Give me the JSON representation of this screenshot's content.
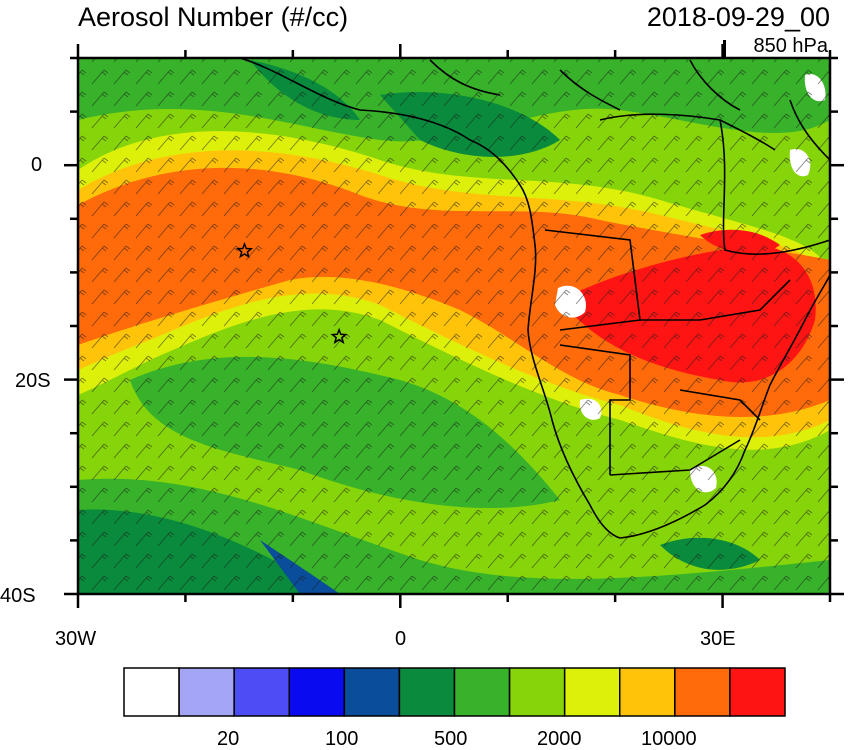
{
  "header": {
    "title": "Aerosol Number (#/cc)",
    "datetime": "2018-09-29_00",
    "level": "850 hPa"
  },
  "map": {
    "lon_range": [
      -30,
      40
    ],
    "lat_range": [
      -40,
      10
    ],
    "lon_tick_labels": [
      "30W",
      "0",
      "30E"
    ],
    "lat_tick_labels": [
      "0",
      "20S",
      "40S"
    ],
    "markers": [
      {
        "name": "star-site-1",
        "lon": -14.5,
        "lat": -8.0
      },
      {
        "name": "star-site-2",
        "lon": -5.7,
        "lat": -16.0
      }
    ],
    "wind_barbs": true
  },
  "colorbar": {
    "colors": [
      "#ffffff",
      "#a5a5f5",
      "#4d4df5",
      "#0a0af0",
      "#0a4d9a",
      "#0a8a3c",
      "#37b22a",
      "#86d40a",
      "#dcf00a",
      "#ffc40a",
      "#ff6a0a",
      "#ff1414"
    ],
    "labels": [
      "20",
      "100",
      "500",
      "2000",
      "10000"
    ]
  }
}
